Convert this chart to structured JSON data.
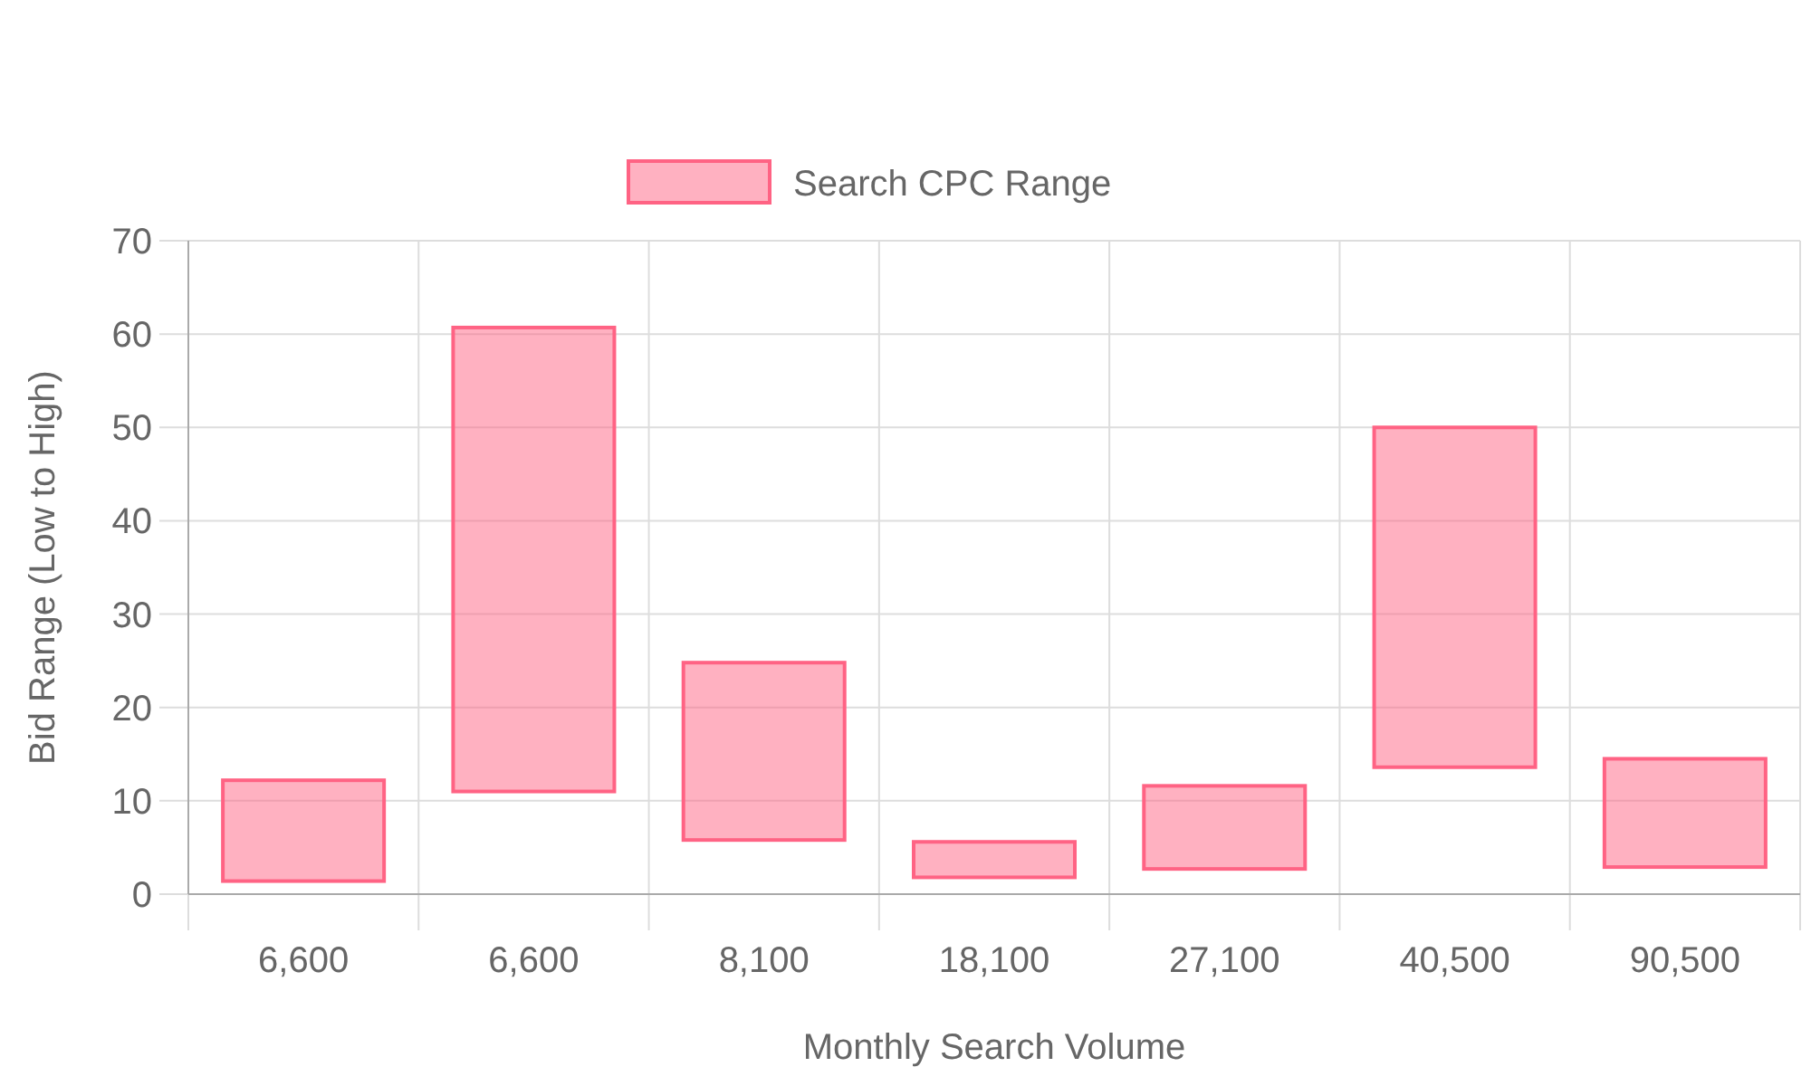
{
  "chart_data": {
    "type": "bar",
    "xlabel": "Monthly Search Volume",
    "ylabel": "Bid Range (Low to High)",
    "categories": [
      "6,600",
      "6,600",
      "8,100",
      "18,100",
      "27,100",
      "40,500",
      "90,500"
    ],
    "series": [
      {
        "name": "Search CPC Range",
        "color": "#ff6384",
        "values": [
          10.8,
          49.7,
          19,
          3.8,
          8.9,
          36.4,
          11.6
        ],
        "base": [
          1.4,
          11,
          5.8,
          1.8,
          2.7,
          13.6,
          2.9
        ]
      }
    ],
    "ylim": [
      0,
      70
    ],
    "yticks": [
      0,
      10,
      20,
      30,
      40,
      50,
      60,
      70
    ],
    "grid": true,
    "legend": "top"
  }
}
